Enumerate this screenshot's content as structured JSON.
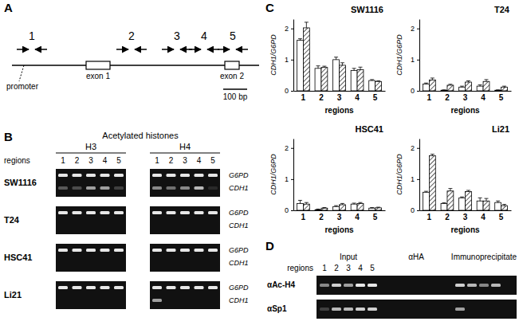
{
  "panel_labels": [
    "A",
    "B",
    "C",
    "D"
  ],
  "diagram": {
    "regions": [
      "1",
      "2",
      "3",
      "4",
      "5"
    ],
    "exons": [
      "exon 1",
      "exon 2"
    ],
    "promoter": "promoter",
    "scale_bar": "100 bp"
  },
  "gel_b": {
    "title": "Acetylated histones",
    "groups": [
      "H3",
      "H4"
    ],
    "regions_label": "regions",
    "regions": [
      "1",
      "2",
      "3",
      "4",
      "5"
    ],
    "bands": [
      "G6PD",
      "CDH1"
    ],
    "rows": [
      {
        "name": "SW1116",
        "G6PD": [
          0.9,
          0.9,
          0.9,
          0.9,
          0.9,
          0.9,
          0.9,
          0.9,
          0.9,
          0.9
        ],
        "CDH1": [
          0.3,
          0.25,
          0.6,
          0.6,
          0.2,
          0.5,
          0.4,
          0.5,
          0.7,
          0.1
        ]
      },
      {
        "name": "T24",
        "G6PD": [
          0.9,
          0.9,
          0.9,
          0.9,
          0.9,
          0.9,
          0.9,
          0.9,
          0.9,
          0.9
        ],
        "CDH1": [
          0,
          0,
          0,
          0,
          0,
          0,
          0,
          0,
          0,
          0
        ]
      },
      {
        "name": "HSC41",
        "G6PD": [
          0.9,
          0.9,
          0.9,
          0.9,
          0.9,
          0.9,
          0.9,
          0.9,
          0.9,
          0.9
        ],
        "CDH1": [
          0,
          0,
          0,
          0,
          0,
          0,
          0,
          0,
          0,
          0
        ]
      },
      {
        "name": "Li21",
        "G6PD": [
          0.9,
          0.9,
          0.9,
          0.9,
          0.9,
          0.9,
          0.9,
          0.9,
          0.9,
          0.9
        ],
        "CDH1": [
          0,
          0,
          0,
          0,
          0,
          0.6,
          0,
          0,
          0,
          0
        ]
      }
    ]
  },
  "chart_data": [
    {
      "type": "bar",
      "title": "SW1116",
      "categories": [
        "1",
        "2",
        "3",
        "4",
        "5"
      ],
      "x_label": "regions",
      "y_label": "CDH1/G6PD",
      "ylim": [
        0,
        2.3
      ],
      "yticks": [
        0,
        1,
        2
      ],
      "series": [
        {
          "color": "#ffffff",
          "marker": "none",
          "values": [
            1.62,
            0.72,
            1.0,
            0.65,
            0.33
          ],
          "errors": [
            0.05,
            0.08,
            0.08,
            0.07,
            0.03
          ]
        },
        {
          "color": "#000000",
          "marker": "hatch",
          "values": [
            2.02,
            0.75,
            0.82,
            0.68,
            0.3
          ],
          "errors": [
            0.18,
            0.04,
            0.08,
            0.08,
            0.02
          ]
        }
      ]
    },
    {
      "type": "bar",
      "title": "T24",
      "categories": [
        "1",
        "2",
        "3",
        "4",
        "5"
      ],
      "x_label": "regions",
      "y_label": "CDH1/G6PD",
      "ylim": [
        0,
        2.3
      ],
      "yticks": [
        0,
        1,
        2
      ],
      "series": [
        {
          "color": "#ffffff",
          "marker": "none",
          "values": [
            0.22,
            0.02,
            0.12,
            0.15,
            0.02
          ],
          "errors": [
            0.03,
            0.01,
            0.03,
            0.04,
            0.01
          ]
        },
        {
          "color": "#000000",
          "marker": "hatch",
          "values": [
            0.35,
            0.18,
            0.28,
            0.3,
            0.12
          ],
          "errors": [
            0.06,
            0.03,
            0.04,
            0.06,
            0.03
          ]
        }
      ]
    },
    {
      "type": "bar",
      "title": "HSC41",
      "categories": [
        "1",
        "2",
        "3",
        "4",
        "5"
      ],
      "x_label": "regions",
      "y_label": "CDH1/G6PD",
      "ylim": [
        0,
        2.3
      ],
      "yticks": [
        0,
        1,
        2
      ],
      "series": [
        {
          "color": "#ffffff",
          "marker": "none",
          "values": [
            0.22,
            0.02,
            0.12,
            0.2,
            0.07
          ],
          "errors": [
            0.1,
            0.02,
            0.03,
            0.03,
            0.02
          ]
        },
        {
          "color": "#000000",
          "marker": "hatch",
          "values": [
            0.2,
            0.07,
            0.18,
            0.22,
            0.08
          ],
          "errors": [
            0.05,
            0.02,
            0.04,
            0.03,
            0.02
          ]
        }
      ]
    },
    {
      "type": "bar",
      "title": "Li21",
      "categories": [
        "1",
        "2",
        "3",
        "4",
        "5"
      ],
      "x_label": "regions",
      "y_label": "CDH1/G6PD",
      "ylim": [
        0,
        2.3
      ],
      "yticks": [
        0,
        1,
        2
      ],
      "series": [
        {
          "color": "#ffffff",
          "marker": "none",
          "values": [
            0.58,
            0.22,
            0.4,
            0.3,
            0.25
          ],
          "errors": [
            0.03,
            0.02,
            0.03,
            0.1,
            0.05
          ]
        },
        {
          "color": "#000000",
          "marker": "hatch",
          "values": [
            1.75,
            0.62,
            0.6,
            0.3,
            0.15
          ],
          "errors": [
            0.05,
            0.08,
            0.04,
            0.08,
            0.04
          ]
        }
      ]
    }
  ],
  "gel_d": {
    "groups": [
      "Input",
      "αHA",
      "Immunoprecipitate"
    ],
    "regions_label": "regions",
    "regions": [
      "1",
      "2",
      "3",
      "4",
      "5"
    ],
    "rows": [
      {
        "name": "αAc-H4",
        "bands": [
          0.5,
          0.8,
          0.6,
          0.9,
          0.9,
          0,
          0,
          0,
          0,
          0,
          0.8,
          0.7,
          0.5,
          0.7,
          0
        ]
      },
      {
        "name": "αSp1",
        "bands": [
          0.2,
          0.7,
          0.7,
          0.8,
          0.8,
          0,
          0,
          0,
          0,
          0,
          0.6,
          0,
          0,
          0,
          0
        ]
      }
    ]
  }
}
